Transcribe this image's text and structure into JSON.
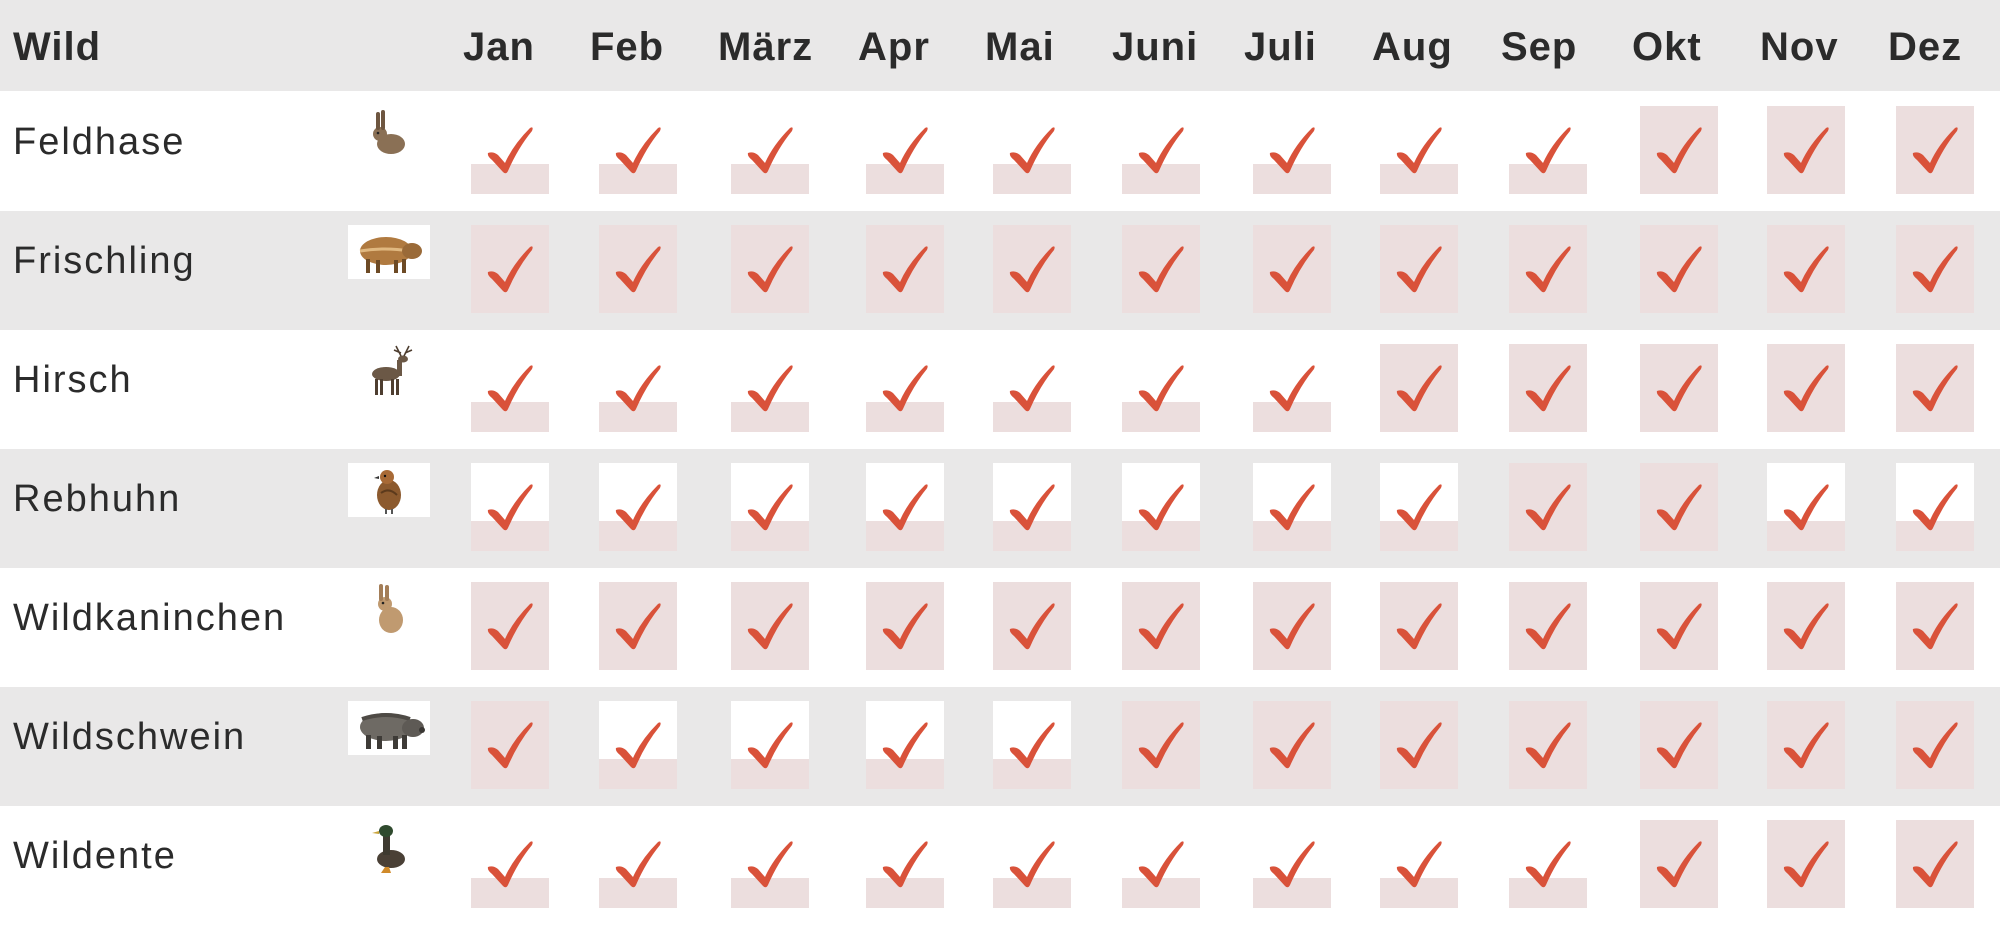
{
  "header": {
    "wild_label": "Wild",
    "months": [
      "Jan",
      "Feb",
      "März",
      "Apr",
      "Mai",
      "Juni",
      "Juli",
      "Aug",
      "Sep",
      "Okt",
      "Nov",
      "Dez"
    ]
  },
  "colors": {
    "check": "#d9523a",
    "season_box": "#ecdede",
    "row_shade": "#e9e8e8"
  },
  "legend_note": "full = shaded box (in season), partial = only lower bar shaded, white = white box",
  "rows": [
    {
      "name": "Feldhase",
      "icon": "hare-icon",
      "cells": [
        "partial",
        "partial",
        "partial",
        "partial",
        "partial",
        "partial",
        "partial",
        "partial",
        "partial",
        "full",
        "full",
        "full"
      ]
    },
    {
      "name": "Frischling",
      "icon": "young-boar-icon",
      "cells": [
        "full",
        "full",
        "full",
        "full",
        "full",
        "full",
        "full",
        "full",
        "full",
        "full",
        "full",
        "full"
      ]
    },
    {
      "name": "Hirsch",
      "icon": "deer-icon",
      "cells": [
        "partial",
        "partial",
        "partial",
        "partial",
        "partial",
        "partial",
        "partial",
        "full",
        "full",
        "full",
        "full",
        "full"
      ]
    },
    {
      "name": "Rebhuhn",
      "icon": "partridge-icon",
      "cells": [
        "white",
        "white",
        "white",
        "white",
        "white",
        "white",
        "white",
        "white",
        "full",
        "full",
        "white",
        "white"
      ]
    },
    {
      "name": "Wildkaninchen",
      "icon": "rabbit-icon",
      "cells": [
        "full",
        "full",
        "full",
        "full",
        "full",
        "full",
        "full",
        "full",
        "full",
        "full",
        "full",
        "full"
      ]
    },
    {
      "name": "Wildschwein",
      "icon": "boar-icon",
      "cells": [
        "full",
        "white",
        "white",
        "white",
        "white",
        "full",
        "full",
        "full",
        "full",
        "full",
        "full",
        "full"
      ]
    },
    {
      "name": "Wildente",
      "icon": "duck-icon",
      "cells": [
        "partial",
        "partial",
        "partial",
        "partial",
        "partial",
        "partial",
        "partial",
        "partial",
        "partial",
        "full",
        "full",
        "full"
      ]
    }
  ]
}
